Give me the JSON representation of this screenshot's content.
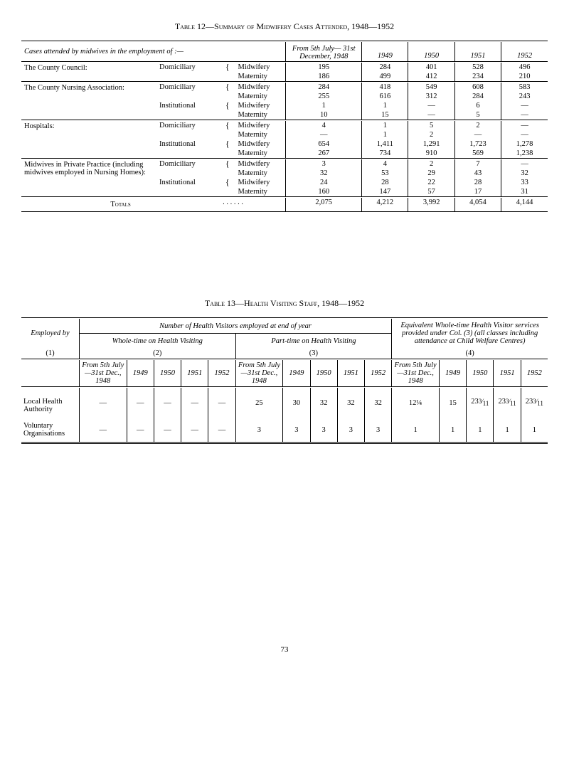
{
  "table12": {
    "title": "Table 12—Summary of Midwifery Cases Attended, 1948—1952",
    "col_headers": {
      "group": "Cases attended by midwives in the employment of :—",
      "c1": "From 5th July— 31st December, 1948",
      "c2": "1949",
      "c3": "1950",
      "c4": "1951",
      "c5": "1952"
    },
    "groups": [
      {
        "label": "The County Council:",
        "rows": [
          {
            "setting": "Domiciliary",
            "br": "{",
            "kind": "Midwifery",
            "v": [
              "195",
              "284",
              "401",
              "528",
              "496"
            ]
          },
          {
            "setting": "",
            "br": "",
            "kind": "Maternity",
            "v": [
              "186",
              "499",
              "412",
              "234",
              "210"
            ]
          }
        ]
      },
      {
        "label": "The County Nursing Association:",
        "rows": [
          {
            "setting": "Domiciliary",
            "br": "{",
            "kind": "Midwifery",
            "v": [
              "284",
              "418",
              "549",
              "608",
              "583"
            ]
          },
          {
            "setting": "",
            "br": "",
            "kind": "Maternity",
            "v": [
              "255",
              "616",
              "312",
              "284",
              "243"
            ]
          },
          {
            "setting": "Institutional",
            "br": "{",
            "kind": "Midwifery",
            "v": [
              "1",
              "1",
              "—",
              "6",
              "—"
            ]
          },
          {
            "setting": "",
            "br": "",
            "kind": "Maternity",
            "v": [
              "10",
              "15",
              "—",
              "5",
              "—"
            ]
          }
        ]
      },
      {
        "label": "Hospitals:",
        "rows": [
          {
            "setting": "Domiciliary",
            "br": "{",
            "kind": "Midwifery",
            "v": [
              "4",
              "1",
              "5",
              "2",
              "—"
            ]
          },
          {
            "setting": "",
            "br": "",
            "kind": "Maternity",
            "v": [
              "—",
              "1",
              "2",
              "—",
              "—"
            ]
          },
          {
            "setting": "Institutional",
            "br": "{",
            "kind": "Midwifery",
            "v": [
              "654",
              "1,411",
              "1,291",
              "1,723",
              "1,278"
            ]
          },
          {
            "setting": "",
            "br": "",
            "kind": "Maternity",
            "v": [
              "267",
              "734",
              "910",
              "569",
              "1,238"
            ]
          }
        ]
      },
      {
        "label": "Midwives in Private Practice (including midwives employed in Nursing Homes):",
        "rows": [
          {
            "setting": "Domiciliary",
            "br": "{",
            "kind": "Midwifery",
            "v": [
              "3",
              "4",
              "2",
              "7",
              "—"
            ]
          },
          {
            "setting": "",
            "br": "",
            "kind": "Maternity",
            "v": [
              "32",
              "53",
              "29",
              "43",
              "32"
            ]
          },
          {
            "setting": "Institutional",
            "br": "{",
            "kind": "Midwifery",
            "v": [
              "24",
              "28",
              "22",
              "28",
              "33"
            ]
          },
          {
            "setting": "",
            "br": "",
            "kind": "Maternity",
            "v": [
              "160",
              "147",
              "57",
              "17",
              "31"
            ]
          }
        ]
      }
    ],
    "totals": {
      "label": "Totals",
      "dots": ". .   . .   . .",
      "v": [
        "2,075",
        "4,212",
        "3,992",
        "4,054",
        "4,144"
      ]
    }
  },
  "table13": {
    "title": "Table 13—Health Visiting Staff, 1948—1952",
    "head": {
      "employed_by": "Employed by",
      "num_hv": "Number of Health Visitors employed at end of year",
      "wt": "Whole-time on Health Visiting",
      "pt": "Part-time on Health Visiting",
      "eq": "Equivalent Whole-time Health Visitor services provided under Col. (3) (all classes including attendance at Child Welfare Centres)",
      "c1": "(1)",
      "c2": "(2)",
      "c3": "(3)",
      "c4": "(4)",
      "from": "From 5th July—31st Dec., 1948",
      "y49": "1949",
      "y50": "1950",
      "y51": "1951",
      "y52": "1952"
    },
    "rows": [
      {
        "label": "Local Health Authority",
        "wt": [
          "—",
          "—",
          "—",
          "—",
          "—"
        ],
        "pt": [
          "25",
          "30",
          "32",
          "32",
          "32"
        ],
        "eq": [
          "12¼",
          "15",
          "23³⁄₁₁",
          "23³⁄₁₁",
          "23³⁄₁₁"
        ]
      },
      {
        "label": "Voluntary Organisations",
        "wt": [
          "—",
          "—",
          "—",
          "—",
          "—"
        ],
        "pt": [
          "3",
          "3",
          "3",
          "3",
          "3"
        ],
        "eq": [
          "1",
          "1",
          "1",
          "1",
          "1"
        ]
      }
    ]
  },
  "page_number": "73"
}
